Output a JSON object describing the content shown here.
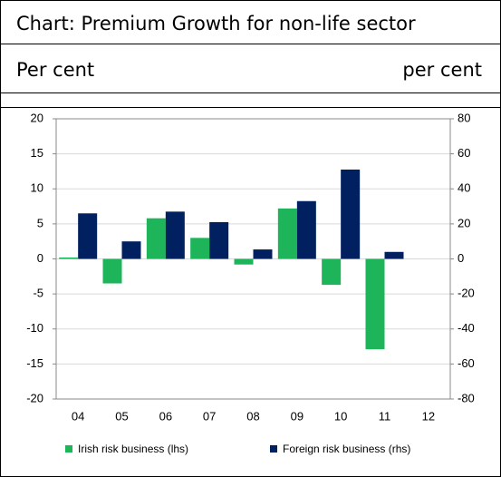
{
  "chart_data": {
    "type": "bar",
    "title": "Chart:   Premium Growth for non-life sector",
    "y_label": "Per cent",
    "y2_label": "per cent",
    "categories": [
      "04",
      "05",
      "06",
      "07",
      "08",
      "09",
      "10",
      "11",
      "12"
    ],
    "series": [
      {
        "name": "Irish risk business (lhs)",
        "color": "#1db45a",
        "values": [
          0.2,
          -3.5,
          5.8,
          3.0,
          -0.8,
          7.2,
          -3.7,
          -12.9,
          null
        ]
      },
      {
        "name": "Foreign risk business (rhs)",
        "color": "#002060",
        "axis": "y2",
        "values": [
          26,
          10,
          27,
          21,
          5.4,
          33,
          51,
          4,
          null
        ]
      }
    ],
    "ylim": [
      -20,
      20
    ],
    "yticks": [
      -20,
      -15,
      -10,
      -5,
      0,
      5,
      10,
      15,
      20
    ],
    "y2lim": [
      -80,
      80
    ],
    "y2ticks": [
      -80,
      -60,
      -40,
      -20,
      0,
      20,
      40,
      60,
      80
    ],
    "grid": true,
    "legend": "bottom"
  }
}
